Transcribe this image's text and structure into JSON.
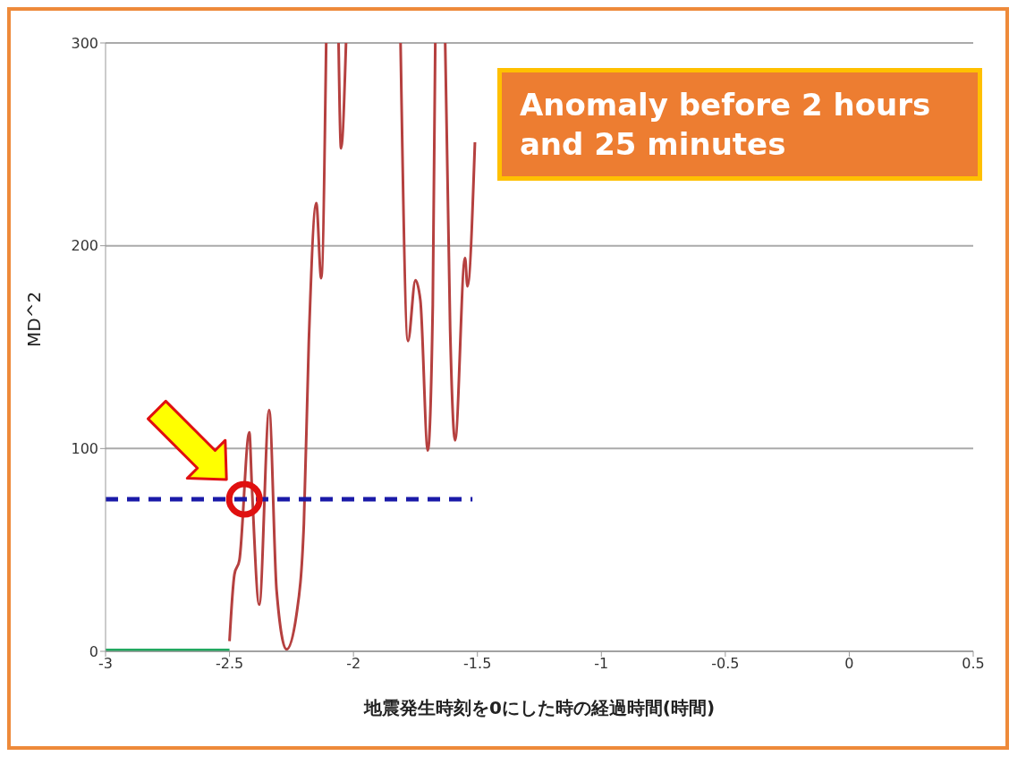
{
  "chart_data": {
    "type": "line",
    "xlabel": "地震発生時刻を0にした時の経過時間(時間)",
    "ylabel": "MD^2",
    "xlim": [
      -3,
      0.5
    ],
    "xticks": [
      -3,
      -2.5,
      -2,
      -1.5,
      -1,
      -0.5,
      0,
      0.5
    ],
    "ylim": [
      0,
      300
    ],
    "yticks": [
      0,
      100,
      200,
      300
    ],
    "grid": "y",
    "marker": "none",
    "annotations": [
      "Anomaly before 2 hours and 25 minutes"
    ],
    "series": [
      {
        "color": "#b5403f",
        "line_style": "solid",
        "x": [
          -2.5,
          -2.48,
          -2.46,
          -2.42,
          -2.41,
          -2.38,
          -2.34,
          -2.31,
          -2.27,
          -2.23,
          -2.2,
          -2.18,
          -2.15,
          -2.13,
          -2.11,
          -2.08,
          -2.06,
          -2.05,
          -2.03,
          -1.92,
          -1.81,
          -1.78,
          -1.75,
          -1.73,
          -1.7,
          -1.68,
          -1.67,
          -1.65,
          -1.63,
          -1.61,
          -1.59,
          -1.55,
          -1.54,
          -1.51
        ],
        "values": [
          5,
          38,
          45,
          108,
          82,
          23,
          119,
          30,
          1,
          18,
          63,
          153,
          221,
          184,
          300,
          null,
          300,
          248,
          300,
          null,
          300,
          153,
          183,
          173,
          99,
          171,
          300,
          null,
          300,
          159,
          104,
          194,
          180,
          251
        ]
      },
      {
        "color": "#1a1aa8",
        "line_style": "dashed",
        "x": [
          -3,
          -1.52
        ],
        "values": [
          75,
          75
        ]
      },
      {
        "color": "#22a860",
        "line_style": "solid",
        "x": [
          -3,
          -2.5
        ],
        "values": [
          0,
          0
        ]
      }
    ]
  }
}
